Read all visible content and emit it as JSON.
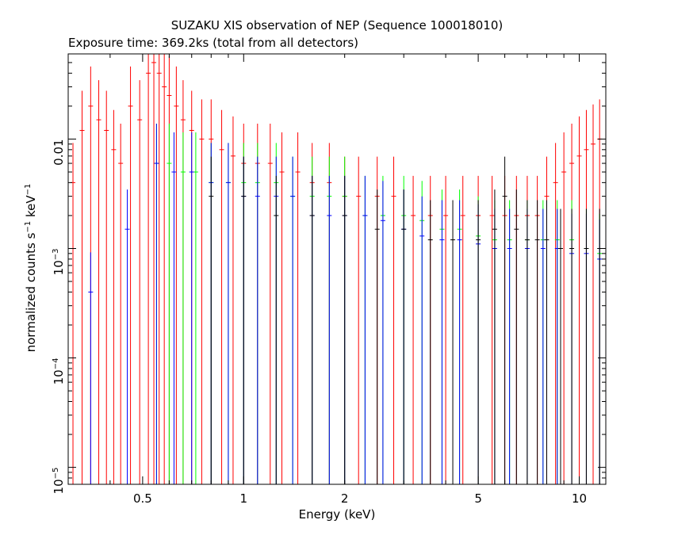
{
  "chart_data": {
    "type": "scatter",
    "title": "SUZAKU XIS observation of NEP (Sequence 100018010)",
    "subtitle": "Exposure time: 369.2ks (total from all detectors)",
    "xlabel": "Energy (keV)",
    "ylabel": {
      "prefix": "normalized counts s",
      "sup1": "−1",
      "middle": " keV",
      "sup2": "−1"
    },
    "x_scale": "log",
    "y_scale": "log",
    "xlim": [
      0.3,
      12
    ],
    "ylim": [
      7e-06,
      0.06
    ],
    "x_ticks": [
      {
        "value": 0.5,
        "label": "0.5"
      },
      {
        "value": 1,
        "label": "1"
      },
      {
        "value": 2,
        "label": "2"
      },
      {
        "value": 5,
        "label": "5"
      },
      {
        "value": 10,
        "label": "10"
      }
    ],
    "y_ticks": [
      {
        "value": 1e-05,
        "base": "10",
        "exp": "−5"
      },
      {
        "value": 0.0001,
        "base": "10",
        "exp": "−4"
      },
      {
        "value": 0.001,
        "base": "10",
        "exp": "−3"
      },
      {
        "value": 0.01,
        "base": "0.01",
        "exp": ""
      }
    ],
    "grid": false,
    "series": [
      {
        "color": "#ff0000",
        "x": [
          0.31,
          0.33,
          0.35,
          0.37,
          0.39,
          0.41,
          0.43,
          0.46,
          0.49,
          0.52,
          0.54,
          0.56,
          0.58,
          0.6,
          0.63,
          0.66,
          0.7,
          0.75,
          0.8,
          0.86,
          0.93,
          1.0,
          1.1,
          1.2,
          1.3,
          1.45,
          1.6,
          1.8,
          2.0,
          2.2,
          2.5,
          2.8,
          3.2,
          3.6,
          4.0,
          4.5,
          5.0,
          5.5,
          6.0,
          6.5,
          7.0,
          7.5,
          8.0,
          8.5,
          9.0,
          9.5,
          10.0,
          10.5,
          11.0,
          11.5
        ],
        "y": [
          0.004,
          0.012,
          0.02,
          0.015,
          0.012,
          0.008,
          0.006,
          0.02,
          0.015,
          0.04,
          0.05,
          0.04,
          0.03,
          0.025,
          0.02,
          0.015,
          0.012,
          0.01,
          0.01,
          0.008,
          0.007,
          0.006,
          0.006,
          0.006,
          0.005,
          0.005,
          0.004,
          0.004,
          0.003,
          0.003,
          0.003,
          0.003,
          0.002,
          0.002,
          0.002,
          0.002,
          0.002,
          0.002,
          0.002,
          0.002,
          0.002,
          0.002,
          0.003,
          0.004,
          0.005,
          0.006,
          0.007,
          0.008,
          0.009,
          0.01
        ]
      },
      {
        "color": "#00ff00",
        "x": [
          0.55,
          0.6,
          0.66,
          0.72,
          0.8,
          0.9,
          1.0,
          1.1,
          1.25,
          1.4,
          1.6,
          1.8,
          2.0,
          2.3,
          2.6,
          3.0,
          3.4,
          3.9,
          4.4,
          5.0,
          5.6,
          6.2,
          7.0,
          7.8,
          8.6,
          9.5,
          10.5,
          11.5
        ],
        "y": [
          0.006,
          0.006,
          0.005,
          0.005,
          0.004,
          0.004,
          0.004,
          0.004,
          0.004,
          0.003,
          0.003,
          0.003,
          0.003,
          0.002,
          0.002,
          0.002,
          0.0018,
          0.0015,
          0.0015,
          0.0013,
          0.0012,
          0.0012,
          0.0012,
          0.0012,
          0.0012,
          0.0012,
          0.001,
          0.0009
        ]
      },
      {
        "color": "#0000ff",
        "x": [
          0.35,
          0.45,
          0.55,
          0.62,
          0.7,
          0.8,
          0.9,
          1.0,
          1.1,
          1.25,
          1.4,
          1.6,
          1.8,
          2.0,
          2.3,
          2.6,
          3.0,
          3.4,
          3.9,
          4.4,
          5.0,
          5.6,
          6.2,
          7.0,
          7.8,
          8.6,
          9.5,
          10.5,
          11.5
        ],
        "y": [
          0.0004,
          0.0015,
          0.006,
          0.005,
          0.005,
          0.004,
          0.004,
          0.003,
          0.003,
          0.003,
          0.003,
          0.002,
          0.002,
          0.002,
          0.002,
          0.0018,
          0.0015,
          0.0013,
          0.0012,
          0.0012,
          0.0011,
          0.001,
          0.001,
          0.001,
          0.001,
          0.001,
          0.0009,
          0.0009,
          0.0008
        ]
      },
      {
        "color": "#000000",
        "x": [
          0.8,
          1.0,
          1.25,
          1.6,
          2.0,
          2.5,
          3.0,
          3.6,
          4.2,
          5.0,
          5.6,
          6.0,
          6.5,
          7.0,
          7.5,
          8.0,
          8.8,
          9.5,
          10.5,
          11.5
        ],
        "y": [
          0.003,
          0.003,
          0.002,
          0.002,
          0.002,
          0.0015,
          0.0015,
          0.0012,
          0.0012,
          0.0012,
          0.0015,
          0.003,
          0.0015,
          0.0012,
          0.0012,
          0.0012,
          0.001,
          0.001,
          0.001,
          0.001
        ]
      }
    ]
  }
}
